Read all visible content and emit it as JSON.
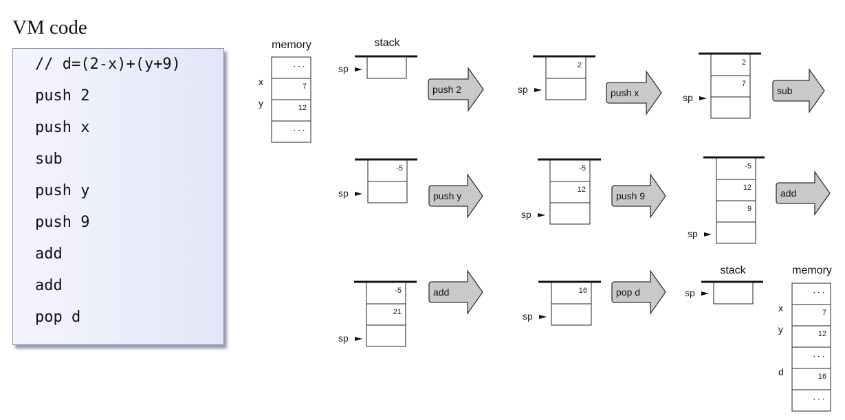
{
  "title": "VM code",
  "code_lines": [
    "// d=(2-x)+(y+9)",
    "push 2",
    "push x",
    "sub",
    "push y",
    "push 9",
    "add",
    "add",
    "pop d"
  ],
  "memory_initial": {
    "label": "memory",
    "cells": [
      {
        "name": "",
        "value": "..."
      },
      {
        "name": "x",
        "value": "7"
      },
      {
        "name": "y",
        "value": "12"
      },
      {
        "name": "",
        "value": "..."
      }
    ]
  },
  "stack_label": "stack",
  "sp_label": "sp",
  "stacks": [
    {
      "values": []
    },
    {
      "values": [
        "2"
      ]
    },
    {
      "values": [
        "2",
        "7"
      ]
    },
    {
      "values": [
        "-5"
      ]
    },
    {
      "values": [
        "-5",
        "12"
      ]
    },
    {
      "values": [
        "-5",
        "12",
        "9"
      ]
    },
    {
      "values": [
        "-5",
        "21"
      ]
    },
    {
      "values": [
        "16"
      ]
    },
    {
      "values": []
    }
  ],
  "operations": [
    "push 2",
    "push x",
    "sub",
    "push y",
    "push 9",
    "add",
    "add",
    "pop d"
  ],
  "memory_final": {
    "label": "memory",
    "cells": [
      {
        "name": "",
        "value": "..."
      },
      {
        "name": "x",
        "value": "7"
      },
      {
        "name": "y",
        "value": "12"
      },
      {
        "name": "",
        "value": "..."
      },
      {
        "name": "d",
        "value": "16"
      },
      {
        "name": "",
        "value": "..."
      }
    ]
  }
}
